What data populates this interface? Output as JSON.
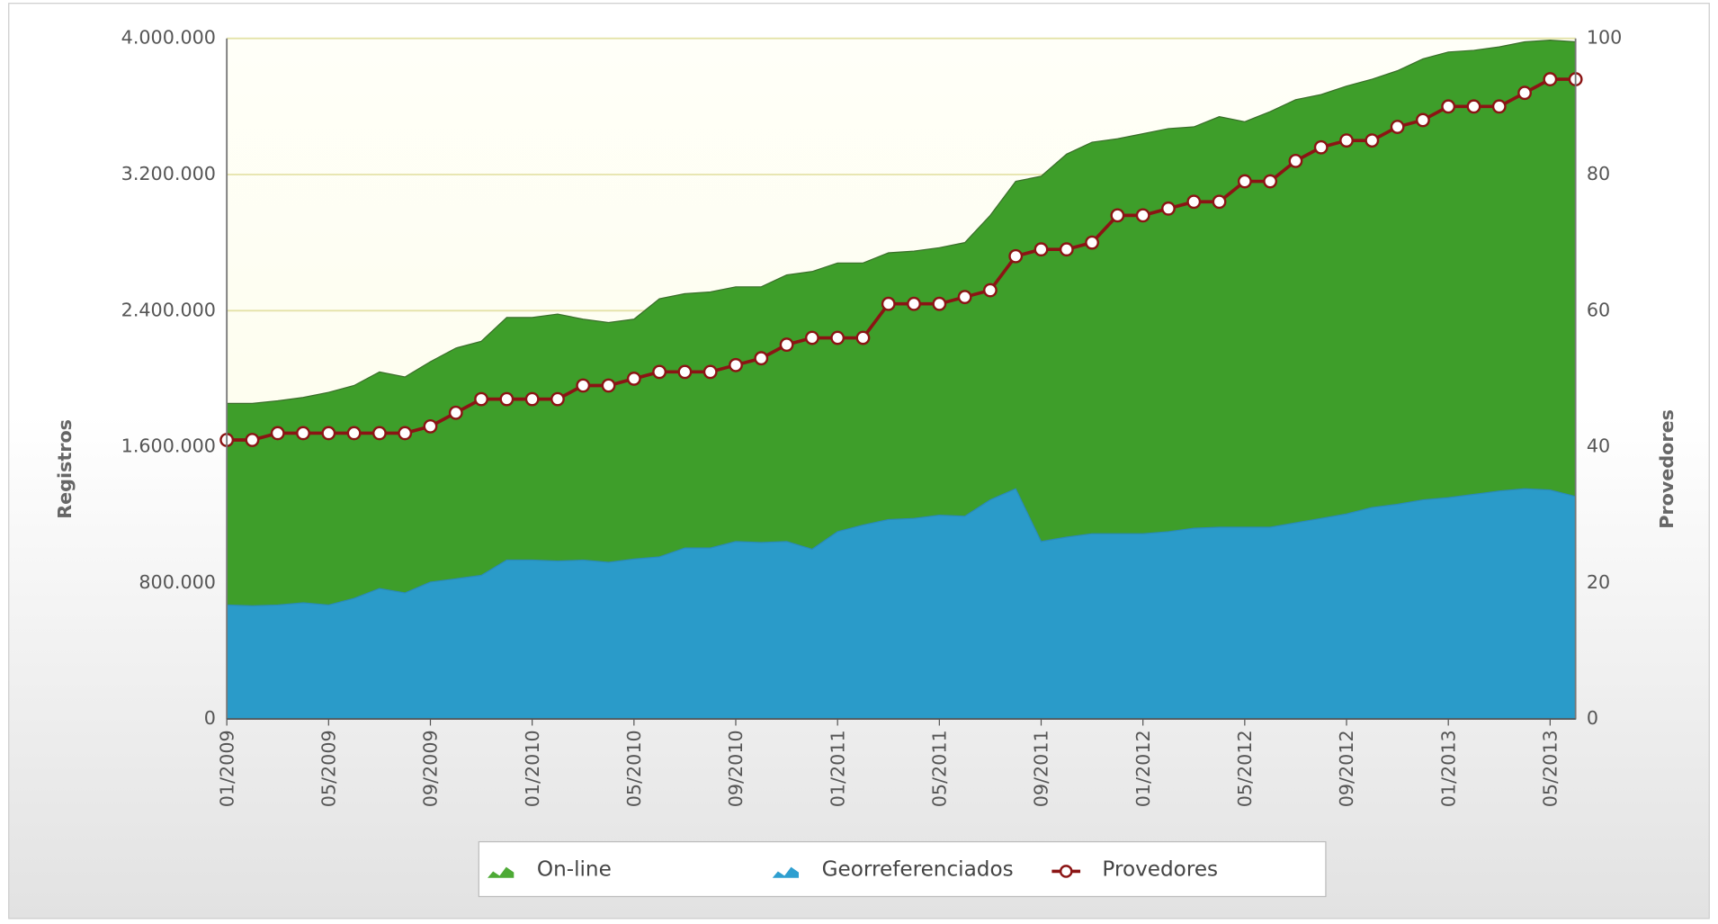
{
  "chart_data": {
    "type": "area_line",
    "categories": [
      "01/2009",
      null,
      null,
      null,
      "05/2009",
      null,
      null,
      null,
      "09/2009",
      null,
      null,
      null,
      "01/2010",
      null,
      null,
      null,
      "05/2010",
      null,
      null,
      null,
      "09/2010",
      null,
      null,
      null,
      "01/2011",
      null,
      null,
      null,
      "05/2011",
      null,
      null,
      null,
      "09/2011",
      null,
      null,
      null,
      "01/2012",
      null,
      null,
      null,
      "05/2012",
      null,
      null,
      null,
      "09/2012",
      null,
      null,
      null,
      "01/2013",
      null,
      null,
      null,
      "05/2013",
      null
    ],
    "ylabel": "Registros",
    "y2label": "Provedores",
    "ylim": [
      0,
      4000000
    ],
    "yticks": [
      0,
      {
        "value": 800000,
        "label": "800.000"
      },
      {
        "value": 1600000,
        "label": "1.600.000"
      },
      {
        "value": 2400000,
        "label": "2.400.000"
      },
      {
        "value": 3200000,
        "label": "3.200.000"
      },
      {
        "value": 4000000,
        "label": "4.000.000"
      }
    ],
    "y2lim": [
      0,
      100
    ],
    "y2ticks": [
      0,
      20,
      40,
      60,
      80,
      100
    ],
    "grid": true,
    "series": [
      {
        "name": "On-line",
        "type": "area",
        "color": "#4daa35",
        "values": [
          1855000,
          1855000,
          1870000,
          1890000,
          1920000,
          1960000,
          2040000,
          2010000,
          2100000,
          2180000,
          2220000,
          2360000,
          2360000,
          2380000,
          2350000,
          2330000,
          2350000,
          2470000,
          2500000,
          2510000,
          2540000,
          2540000,
          2610000,
          2630000,
          2680000,
          2680000,
          2740000,
          2750000,
          2770000,
          2800000,
          2960000,
          3160000,
          3190000,
          3320000,
          3390000,
          3410000,
          3440000,
          3470000,
          3480000,
          3540000,
          3510000,
          3570000,
          3640000,
          3670000,
          3720000,
          3760000,
          3810000,
          3880000,
          3920000,
          3930000,
          3950000,
          3980000,
          3990000,
          3980000
        ]
      },
      {
        "name": "Georreferenciados",
        "type": "area",
        "color": "#2e9fd0",
        "values": [
          670000,
          665000,
          670000,
          683000,
          670000,
          709000,
          767000,
          741000,
          805000,
          824000,
          844000,
          934000,
          934000,
          928000,
          934000,
          921000,
          940000,
          953000,
          1005000,
          1005000,
          1043000,
          1037000,
          1043000,
          998000,
          1101000,
          1140000,
          1172000,
          1179000,
          1198000,
          1192000,
          1288000,
          1353000,
          1043000,
          1069000,
          1089000,
          1089000,
          1089000,
          1101000,
          1121000,
          1127000,
          1127000,
          1127000,
          1153000,
          1179000,
          1205000,
          1243000,
          1262000,
          1288000,
          1301000,
          1320000,
          1340000,
          1353000,
          1346000,
          1308000
        ]
      },
      {
        "name": "Provedores",
        "type": "line",
        "axis": "y2",
        "color": "#8b1414",
        "values": [
          41,
          41,
          42,
          42,
          42,
          42,
          42,
          42,
          43,
          45,
          47,
          47,
          47,
          47,
          49,
          49,
          50,
          51,
          51,
          51,
          52,
          53,
          55,
          56,
          56,
          56,
          61,
          61,
          61,
          62,
          63,
          68,
          69,
          69,
          70,
          74,
          74,
          75,
          76,
          76,
          79,
          79,
          82,
          84,
          85,
          85,
          87,
          88,
          90,
          90,
          90,
          92,
          94,
          94
        ]
      }
    ]
  }
}
